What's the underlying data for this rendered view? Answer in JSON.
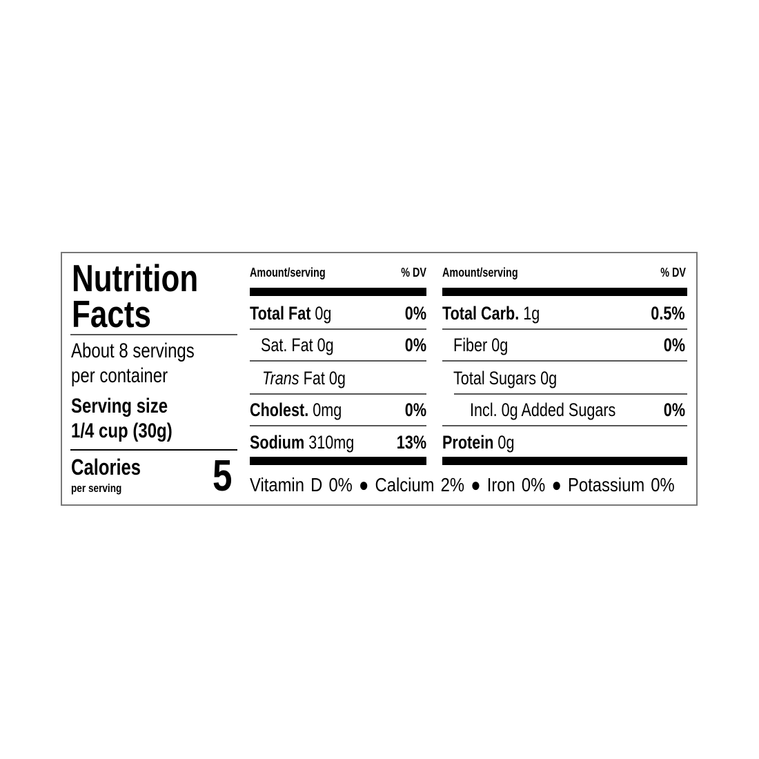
{
  "title_line1": "Nutrition",
  "title_line2": "Facts",
  "servings_line1": "About 8 servings",
  "servings_line2": "per container",
  "serving_size_label": "Serving size",
  "serving_size_value": "1/4 cup (30g)",
  "calories_label": "Calories",
  "calories_sub": "per serving",
  "calories_value": "5",
  "header": {
    "amount": "Amount/serving",
    "dv": "% DV"
  },
  "left_rows": [
    {
      "name": "Total Fat",
      "amount": "0g",
      "dv": "0%"
    },
    {
      "name": "Sat. Fat",
      "amount": "0g",
      "dv": "0%"
    },
    {
      "name": "Trans",
      "name_suffix": "Fat",
      "amount": "0g",
      "dv": ""
    },
    {
      "name": "Cholest.",
      "amount": "0mg",
      "dv": "0%"
    },
    {
      "name": "Sodium",
      "amount": "310mg",
      "dv": "13%"
    }
  ],
  "right_rows": [
    {
      "name": "Total Carb.",
      "amount": "1g",
      "dv": "0.5%"
    },
    {
      "name": "Fiber",
      "amount": "0g",
      "dv": "0%"
    },
    {
      "name": "Total Sugars",
      "amount": "0g",
      "dv": ""
    },
    {
      "name": "Incl. 0g Added Sugars",
      "amount": "",
      "dv": "0%"
    },
    {
      "name": "Protein",
      "amount": "0g",
      "dv": ""
    }
  ],
  "vitamins": "Vitamin D 0% ● Calcium 2% ● Iron 0% ● Potassium 0%"
}
